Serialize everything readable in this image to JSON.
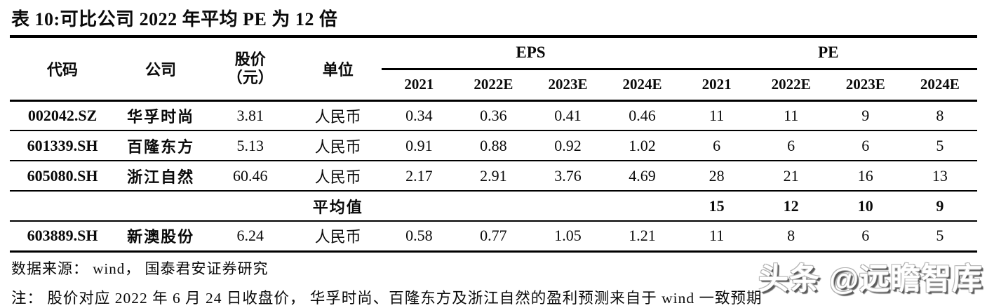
{
  "title": "表 10:可比公司 2022 年平均 PE 为 12 倍",
  "table": {
    "headers": {
      "code": "代码",
      "company": "公司",
      "price_line1": "股价",
      "price_line2": "（元）",
      "unit": "单位",
      "eps_group": "EPS",
      "pe_group": "PE",
      "eps_years": [
        "2021",
        "2022E",
        "2023E",
        "2024E"
      ],
      "pe_years": [
        "2021",
        "2022E",
        "2023E",
        "2024E"
      ]
    },
    "rows": [
      {
        "code": "002042.SZ",
        "company": "华孚时尚",
        "price": "3.81",
        "unit": "人民币",
        "eps": [
          "0.34",
          "0.36",
          "0.41",
          "0.46"
        ],
        "pe": [
          "11",
          "11",
          "9",
          "8"
        ]
      },
      {
        "code": "601339.SH",
        "company": "百隆东方",
        "price": "5.13",
        "unit": "人民币",
        "eps": [
          "0.91",
          "0.88",
          "0.92",
          "1.02"
        ],
        "pe": [
          "6",
          "6",
          "6",
          "5"
        ]
      },
      {
        "code": "605080.SH",
        "company": "浙江自然",
        "price": "60.46",
        "unit": "人民币",
        "eps": [
          "2.17",
          "2.91",
          "3.76",
          "4.69"
        ],
        "pe": [
          "28",
          "21",
          "16",
          "13"
        ]
      }
    ],
    "average_row": {
      "label": "平均值",
      "pe": [
        "15",
        "12",
        "10",
        "9"
      ]
    },
    "last_row": {
      "code": "603889.SH",
      "company": "新澳股份",
      "price": "6.24",
      "unit": "人民币",
      "eps": [
        "0.58",
        "0.77",
        "1.05",
        "1.21"
      ],
      "pe": [
        "11",
        "8",
        "6",
        "5"
      ]
    }
  },
  "footer": {
    "source": "数据来源： wind， 国泰君安证券研究",
    "note": "注： 股价对应 2022 年 6 月 24 日收盘价， 华孚时尚、百隆东方及浙江自然的盈利预测来自于 wind 一致预期"
  },
  "watermark": "头条 @远瞻智库"
}
